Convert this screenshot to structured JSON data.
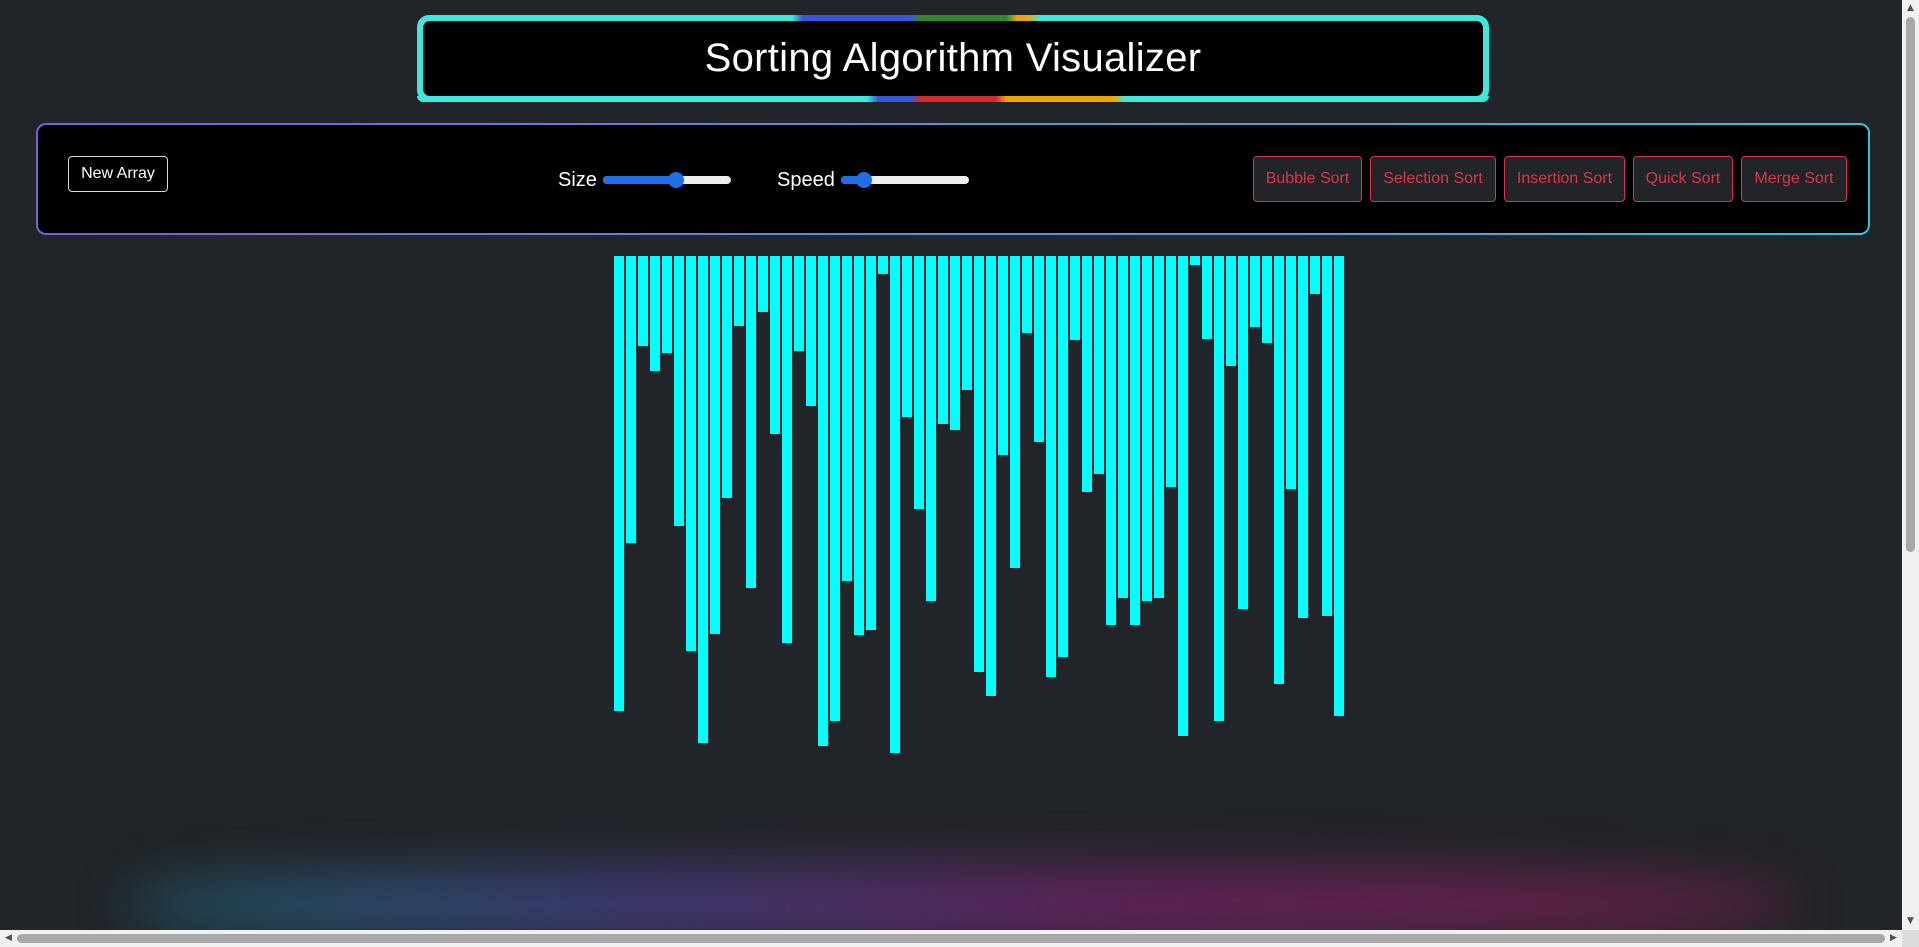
{
  "header": {
    "title": "Sorting Algorithm Visualizer"
  },
  "controls": {
    "new_array_label": "New Array",
    "size_label": "Size",
    "size_value_fraction": 0.57,
    "speed_label": "Speed",
    "speed_value_fraction": 0.18,
    "algorithms": [
      "Bubble Sort",
      "Selection Sort",
      "Insertion Sort",
      "Quick Sort",
      "Merge Sort"
    ]
  },
  "colors": {
    "background": "#212428",
    "bar": "#00ffff",
    "accent_button": "#dc3545",
    "slider": "#1f6fe8"
  },
  "chart_data": {
    "type": "bar",
    "values": [
      455,
      287,
      90,
      115,
      97,
      270,
      395,
      487,
      378,
      242,
      70,
      332,
      56,
      178,
      387,
      95,
      150,
      490,
      465,
      325,
      379,
      374,
      18,
      497,
      161,
      253,
      345,
      168,
      174,
      134,
      416,
      440,
      199,
      312,
      77,
      186,
      421,
      401,
      84,
      236,
      218,
      369,
      342,
      369,
      345,
      342,
      231,
      480,
      9,
      83,
      465,
      110,
      353,
      71,
      87,
      428,
      233,
      362,
      38,
      360,
      460
    ]
  }
}
